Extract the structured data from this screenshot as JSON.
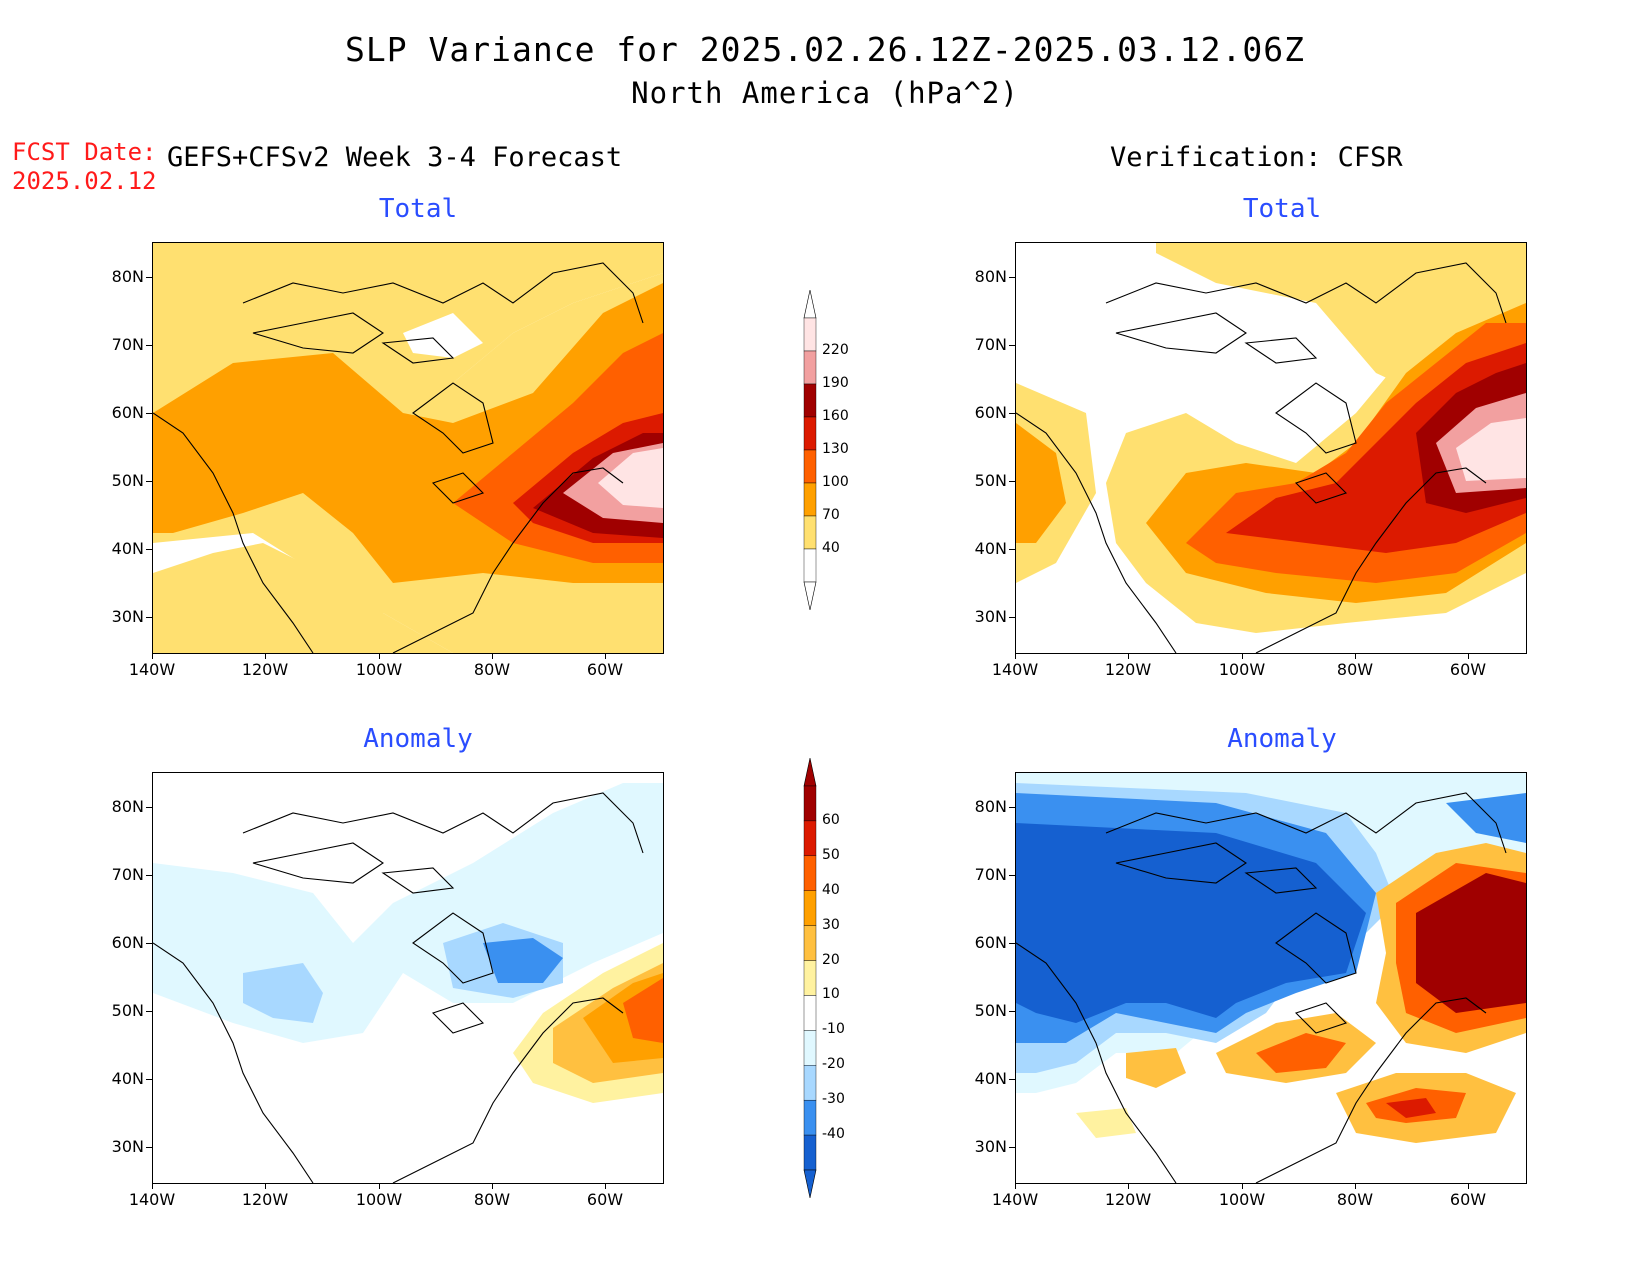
{
  "title": "SLP Variance for 2025.02.26.12Z-2025.03.12.06Z",
  "subtitle": "North America (hPa^2)",
  "fcst_date_label": "FCST Date:",
  "fcst_date_value": "2025.02.12",
  "left_header": "GEFS+CFSv2 Week 3-4 Forecast",
  "right_header": "Verification: CFSR",
  "panel_titles": {
    "forecast_total": "Total",
    "verification_total": "Total",
    "forecast_anomaly": "Anomaly",
    "verification_anomaly": "Anomaly"
  },
  "lat_labels": [
    "80N",
    "70N",
    "60N",
    "50N",
    "40N",
    "30N"
  ],
  "lon_labels": [
    "140W",
    "120W",
    "100W",
    "80W",
    "60W"
  ],
  "total_colorbar": {
    "labels": [
      "220",
      "190",
      "160",
      "130",
      "100",
      "70",
      "40"
    ],
    "colors": [
      "#ffe4e4",
      "#f2a0a0",
      "#a00000",
      "#dc1a00",
      "#ff6000",
      "#ffa000",
      "#ffe070",
      "#ffffff"
    ]
  },
  "anomaly_colorbar": {
    "labels": [
      "60",
      "50",
      "40",
      "30",
      "20",
      "10",
      "-10",
      "-20",
      "-30",
      "-40"
    ],
    "colors": [
      "#a00000",
      "#dc1a00",
      "#ff6000",
      "#ffa000",
      "#ffc040",
      "#fff2a0",
      "#ffffff",
      "#e0f8ff",
      "#a8d8ff",
      "#3a90f0",
      "#1560d0"
    ]
  },
  "chart_data": {
    "type": "heatmap",
    "region": "North America",
    "units": "hPa^2",
    "lon_range": [
      -140,
      -50
    ],
    "lat_range": [
      25,
      85
    ],
    "total_levels": [
      40,
      70,
      100,
      130,
      160,
      190,
      220
    ],
    "anomaly_levels": [
      -40,
      -30,
      -20,
      -10,
      10,
      20,
      30,
      40,
      50,
      60
    ]
  }
}
